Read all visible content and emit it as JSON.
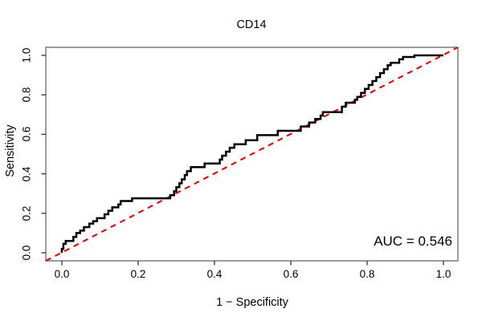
{
  "title": "CD14",
  "axes": {
    "x_label": "1 − Specificity",
    "y_label": "Sensitivity",
    "x_ticks": [
      "0.0",
      "0.2",
      "0.4",
      "0.6",
      "0.8",
      "1.0"
    ],
    "y_ticks": [
      "0.0",
      "0.2",
      "0.4",
      "0.6",
      "0.8",
      "1.0"
    ]
  },
  "annotation": {
    "auc_label": "AUC = 0.546"
  },
  "colors": {
    "curve": "#000000",
    "diagonal": "#ee0000",
    "box": "#666666",
    "tick": "#333333",
    "background": "#ffffff"
  },
  "chart_data": {
    "type": "line",
    "subtype": "roc-step-curve",
    "title": "CD14",
    "xlabel": "1 − Specificity",
    "ylabel": "Sensitivity",
    "xlim": [
      0,
      1
    ],
    "ylim": [
      0,
      1
    ],
    "grid": false,
    "legend": "none",
    "auc": 0.546,
    "diagonal_reference": {
      "from": [
        0,
        0
      ],
      "to": [
        1,
        1
      ],
      "style": "dashed",
      "color": "#ee0000"
    },
    "series": [
      {
        "name": "ROC curve CD14",
        "color": "#000000",
        "step_points": [
          [
            0.0,
            0.0
          ],
          [
            0.0,
            0.02
          ],
          [
            0.004,
            0.02
          ],
          [
            0.004,
            0.045
          ],
          [
            0.01,
            0.045
          ],
          [
            0.01,
            0.06
          ],
          [
            0.03,
            0.06
          ],
          [
            0.03,
            0.08
          ],
          [
            0.038,
            0.08
          ],
          [
            0.038,
            0.1
          ],
          [
            0.048,
            0.1
          ],
          [
            0.048,
            0.112
          ],
          [
            0.058,
            0.112
          ],
          [
            0.058,
            0.13
          ],
          [
            0.072,
            0.13
          ],
          [
            0.072,
            0.148
          ],
          [
            0.082,
            0.148
          ],
          [
            0.082,
            0.16
          ],
          [
            0.092,
            0.16
          ],
          [
            0.092,
            0.175
          ],
          [
            0.112,
            0.175
          ],
          [
            0.112,
            0.195
          ],
          [
            0.122,
            0.195
          ],
          [
            0.122,
            0.213
          ],
          [
            0.132,
            0.213
          ],
          [
            0.132,
            0.23
          ],
          [
            0.148,
            0.23
          ],
          [
            0.148,
            0.245
          ],
          [
            0.154,
            0.245
          ],
          [
            0.154,
            0.262
          ],
          [
            0.184,
            0.262
          ],
          [
            0.184,
            0.276
          ],
          [
            0.284,
            0.276
          ],
          [
            0.284,
            0.292
          ],
          [
            0.294,
            0.292
          ],
          [
            0.294,
            0.312
          ],
          [
            0.3,
            0.312
          ],
          [
            0.3,
            0.332
          ],
          [
            0.308,
            0.332
          ],
          [
            0.308,
            0.352
          ],
          [
            0.314,
            0.352
          ],
          [
            0.314,
            0.372
          ],
          [
            0.322,
            0.372
          ],
          [
            0.322,
            0.394
          ],
          [
            0.328,
            0.394
          ],
          [
            0.328,
            0.414
          ],
          [
            0.338,
            0.414
          ],
          [
            0.338,
            0.434
          ],
          [
            0.374,
            0.434
          ],
          [
            0.374,
            0.452
          ],
          [
            0.414,
            0.452
          ],
          [
            0.414,
            0.472
          ],
          [
            0.42,
            0.472
          ],
          [
            0.42,
            0.492
          ],
          [
            0.43,
            0.492
          ],
          [
            0.43,
            0.512
          ],
          [
            0.44,
            0.512
          ],
          [
            0.44,
            0.532
          ],
          [
            0.452,
            0.532
          ],
          [
            0.452,
            0.55
          ],
          [
            0.482,
            0.55
          ],
          [
            0.482,
            0.57
          ],
          [
            0.512,
            0.57
          ],
          [
            0.512,
            0.596
          ],
          [
            0.566,
            0.596
          ],
          [
            0.566,
            0.618
          ],
          [
            0.626,
            0.618
          ],
          [
            0.626,
            0.64
          ],
          [
            0.648,
            0.64
          ],
          [
            0.648,
            0.66
          ],
          [
            0.664,
            0.66
          ],
          [
            0.664,
            0.678
          ],
          [
            0.678,
            0.678
          ],
          [
            0.678,
            0.695
          ],
          [
            0.684,
            0.695
          ],
          [
            0.684,
            0.712
          ],
          [
            0.734,
            0.712
          ],
          [
            0.734,
            0.74
          ],
          [
            0.744,
            0.74
          ],
          [
            0.744,
            0.76
          ],
          [
            0.768,
            0.76
          ],
          [
            0.768,
            0.775
          ],
          [
            0.774,
            0.775
          ],
          [
            0.774,
            0.79
          ],
          [
            0.784,
            0.79
          ],
          [
            0.784,
            0.81
          ],
          [
            0.794,
            0.81
          ],
          [
            0.794,
            0.83
          ],
          [
            0.804,
            0.83
          ],
          [
            0.804,
            0.85
          ],
          [
            0.814,
            0.85
          ],
          [
            0.814,
            0.87
          ],
          [
            0.824,
            0.87
          ],
          [
            0.824,
            0.89
          ],
          [
            0.834,
            0.89
          ],
          [
            0.834,
            0.91
          ],
          [
            0.844,
            0.91
          ],
          [
            0.844,
            0.93
          ],
          [
            0.854,
            0.93
          ],
          [
            0.854,
            0.95
          ],
          [
            0.862,
            0.95
          ],
          [
            0.862,
            0.962
          ],
          [
            0.884,
            0.962
          ],
          [
            0.884,
            0.98
          ],
          [
            0.894,
            0.98
          ],
          [
            0.894,
            0.992
          ],
          [
            0.924,
            0.992
          ],
          [
            0.924,
            1.0
          ],
          [
            1.0,
            1.0
          ]
        ]
      }
    ]
  }
}
